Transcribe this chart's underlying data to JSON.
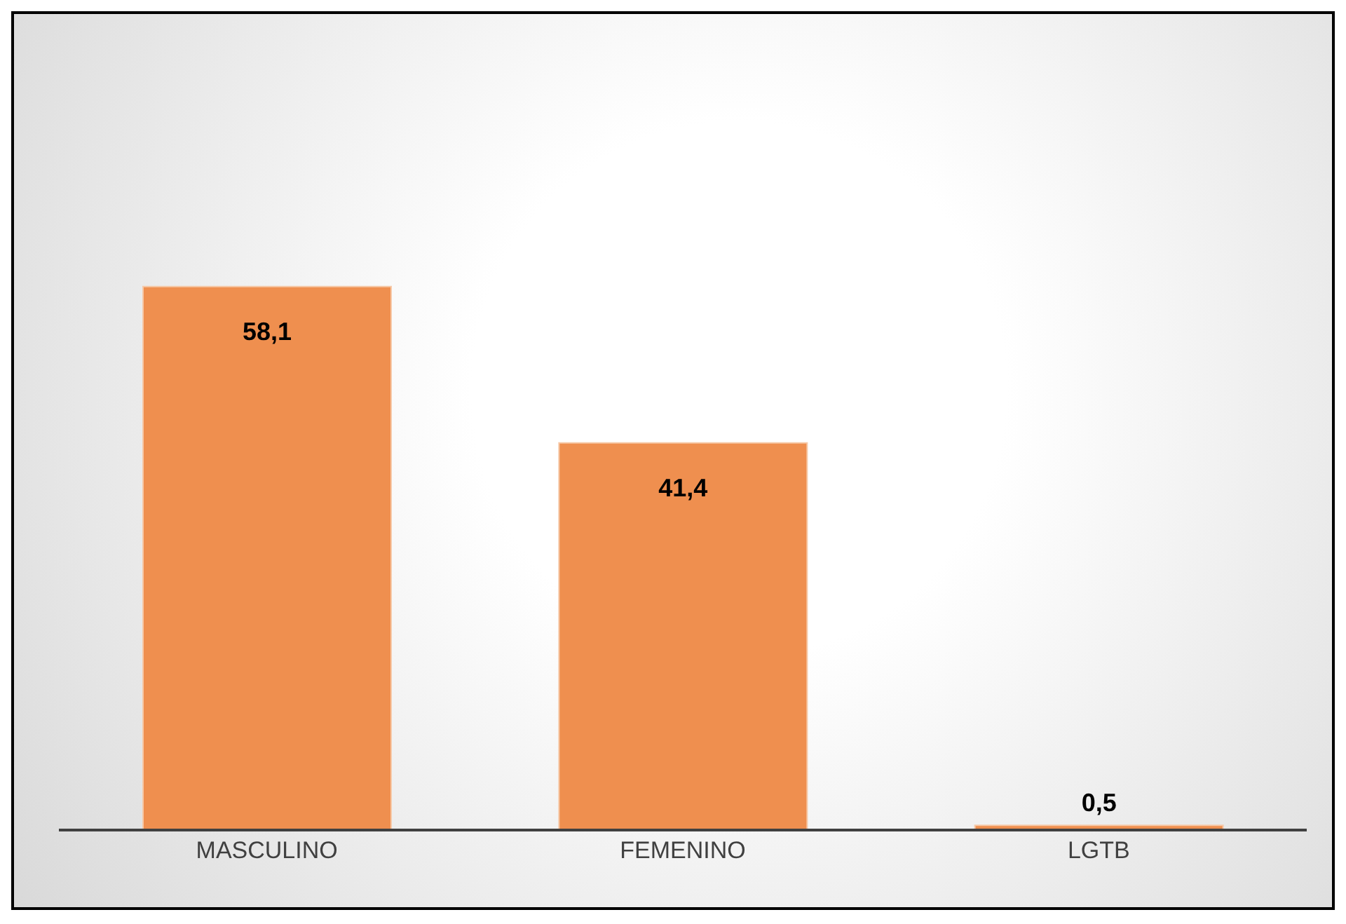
{
  "chart_data": {
    "type": "bar",
    "categories": [
      "MASCULINO",
      "FEMENINO",
      "LGTB"
    ],
    "values": [
      58.1,
      41.4,
      0.5
    ],
    "value_labels": [
      "58,1",
      "41,4",
      "0,5"
    ],
    "color": "#ef8f4f"
  }
}
